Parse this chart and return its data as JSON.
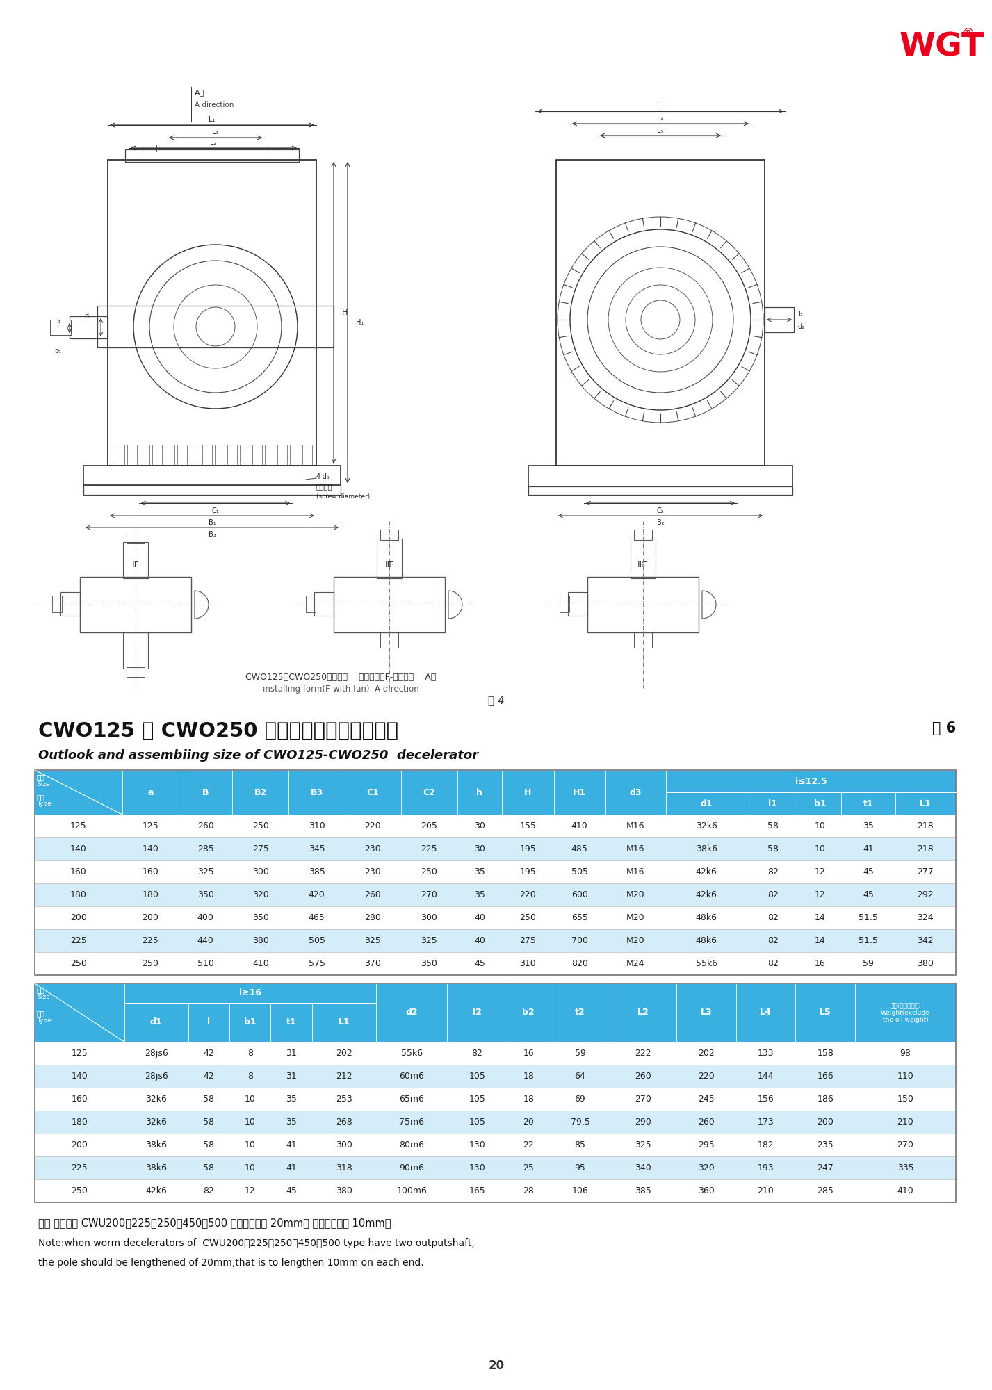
{
  "page_bg": "#ffffff",
  "title_cn": "CWO125 ～ CWO250 型减速器外形及安装尺寸",
  "table_num": "表 6",
  "fig_num": "图 4",
  "title_en": "Outlook and assembiing size of CWO125-CWO250  decelerator",
  "diagram_caption_cn": "CWO125～CWO250型减速机    装配型式（F-带风扇）    A向",
  "diagram_caption_en": "installing form(F-with fan)  A direction",
  "table1_data": [
    [
      "125",
      "125",
      "260",
      "250",
      "310",
      "220",
      "205",
      "30",
      "155",
      "410",
      "M16",
      "32k6",
      "58",
      "10",
      "35",
      "218"
    ],
    [
      "140",
      "140",
      "285",
      "275",
      "345",
      "230",
      "225",
      "30",
      "195",
      "485",
      "M16",
      "38k6",
      "58",
      "10",
      "41",
      "218"
    ],
    [
      "160",
      "160",
      "325",
      "300",
      "385",
      "230",
      "250",
      "35",
      "195",
      "505",
      "M16",
      "42k6",
      "82",
      "12",
      "45",
      "277"
    ],
    [
      "180",
      "180",
      "350",
      "320",
      "420",
      "260",
      "270",
      "35",
      "220",
      "600",
      "M20",
      "42k6",
      "82",
      "12",
      "45",
      "292"
    ],
    [
      "200",
      "200",
      "400",
      "350",
      "465",
      "280",
      "300",
      "40",
      "250",
      "655",
      "M20",
      "48k6",
      "82",
      "14",
      "51.5",
      "324"
    ],
    [
      "225",
      "225",
      "440",
      "380",
      "505",
      "325",
      "325",
      "40",
      "275",
      "700",
      "M20",
      "48k6",
      "82",
      "14",
      "51.5",
      "342"
    ],
    [
      "250",
      "250",
      "510",
      "410",
      "575",
      "370",
      "350",
      "45",
      "310",
      "820",
      "M24",
      "55k6",
      "82",
      "16",
      "59",
      "380"
    ]
  ],
  "table2_data": [
    [
      "125",
      "28js6",
      "42",
      "8",
      "31",
      "202",
      "55k6",
      "82",
      "16",
      "59",
      "222",
      "202",
      "133",
      "158",
      "98"
    ],
    [
      "140",
      "28js6",
      "42",
      "8",
      "31",
      "212",
      "60m6",
      "105",
      "18",
      "64",
      "260",
      "220",
      "144",
      "166",
      "110"
    ],
    [
      "160",
      "32k6",
      "58",
      "10",
      "35",
      "253",
      "65m6",
      "105",
      "18",
      "69",
      "270",
      "245",
      "156",
      "186",
      "150"
    ],
    [
      "180",
      "32k6",
      "58",
      "10",
      "35",
      "268",
      "75m6",
      "105",
      "20",
      "79.5",
      "290",
      "260",
      "173",
      "200",
      "210"
    ],
    [
      "200",
      "38k6",
      "58",
      "10",
      "41",
      "300",
      "80m6",
      "130",
      "22",
      "85",
      "325",
      "295",
      "182",
      "235",
      "270"
    ],
    [
      "225",
      "38k6",
      "58",
      "10",
      "41",
      "318",
      "90m6",
      "130",
      "25",
      "95",
      "340",
      "320",
      "193",
      "247",
      "335"
    ],
    [
      "250",
      "42k6",
      "82",
      "12",
      "45",
      "380",
      "100m6",
      "165",
      "28",
      "106",
      "385",
      "360",
      "210",
      "285",
      "410"
    ]
  ],
  "note_cn": "注： 蜗杆双出 CWU200、225、250、450、500 杆总长须加长 20mm， 即两端各加长 10mm。",
  "note_en1": "Note:when worm decelerators of  CWU200、225、250、450、500 type have two outputshaft,",
  "note_en2": "the pole should be lengthened of 20mm,that is to lengthen 10mm on each end.",
  "page_num": "20",
  "header_blue": "#3ab0e0",
  "header_blue_dark": "#2a9cc8",
  "row_white": "#ffffff",
  "row_light": "#d8eef8",
  "wgt_red": "#e8001c"
}
